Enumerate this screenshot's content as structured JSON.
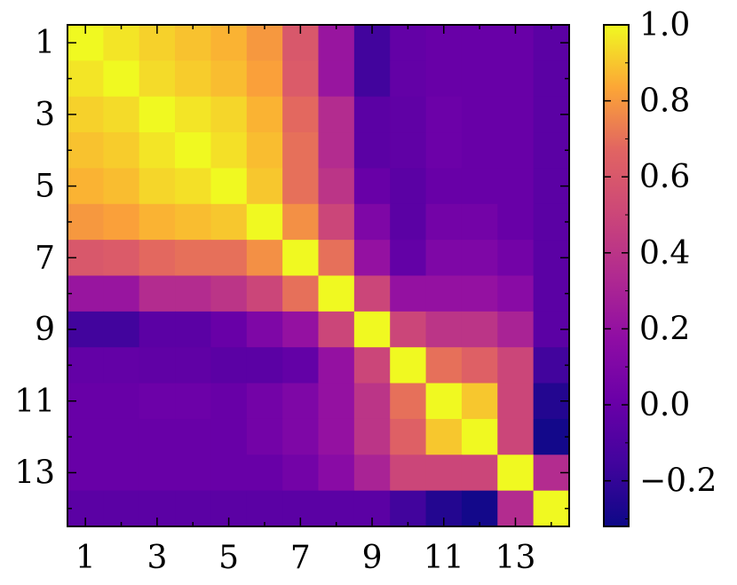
{
  "chart_data": {
    "type": "heatmap",
    "title": "",
    "xlabel": "",
    "ylabel": "",
    "x_tick_labels": [
      "1",
      "3",
      "5",
      "7",
      "9",
      "11",
      "13"
    ],
    "y_tick_labels": [
      "1",
      "3",
      "5",
      "7",
      "9",
      "11",
      "13"
    ],
    "colorbar": {
      "colormap": "plasma",
      "vmin": -0.32,
      "vmax": 1.0,
      "tick_labels": [
        "1.0",
        "0.8",
        "0.6",
        "0.4",
        "0.2",
        "0.0",
        "−0.2"
      ],
      "tick_values": [
        1.0,
        0.8,
        0.6,
        0.4,
        0.2,
        0.0,
        -0.2
      ]
    },
    "grid": false,
    "rows": 14,
    "cols": 14,
    "matrix": [
      [
        1.0,
        0.96,
        0.92,
        0.89,
        0.86,
        0.8,
        0.6,
        0.22,
        -0.15,
        -0.02,
        0.0,
        0.0,
        0.0,
        -0.05
      ],
      [
        0.96,
        1.0,
        0.94,
        0.91,
        0.88,
        0.82,
        0.62,
        0.22,
        -0.15,
        -0.02,
        0.0,
        0.0,
        0.0,
        -0.05
      ],
      [
        0.92,
        0.94,
        1.0,
        0.96,
        0.93,
        0.86,
        0.68,
        0.35,
        -0.05,
        -0.03,
        0.02,
        0.0,
        0.0,
        -0.05
      ],
      [
        0.89,
        0.91,
        0.96,
        1.0,
        0.95,
        0.88,
        0.7,
        0.35,
        -0.05,
        -0.03,
        0.02,
        0.0,
        0.0,
        -0.05
      ],
      [
        0.86,
        0.88,
        0.93,
        0.95,
        1.0,
        0.9,
        0.7,
        0.4,
        0.0,
        -0.05,
        0.0,
        0.0,
        0.0,
        -0.05
      ],
      [
        0.8,
        0.82,
        0.86,
        0.88,
        0.9,
        1.0,
        0.78,
        0.5,
        0.1,
        -0.05,
        0.05,
        0.05,
        0.0,
        -0.05
      ],
      [
        0.6,
        0.62,
        0.68,
        0.7,
        0.7,
        0.78,
        1.0,
        0.7,
        0.2,
        -0.02,
        0.1,
        0.1,
        0.05,
        -0.05
      ],
      [
        0.22,
        0.22,
        0.35,
        0.35,
        0.4,
        0.5,
        0.7,
        1.0,
        0.5,
        0.2,
        0.2,
        0.2,
        0.15,
        -0.05
      ],
      [
        -0.15,
        -0.15,
        -0.05,
        -0.05,
        0.0,
        0.1,
        0.2,
        0.5,
        1.0,
        0.5,
        0.4,
        0.4,
        0.3,
        -0.05
      ],
      [
        -0.02,
        -0.02,
        -0.03,
        -0.03,
        -0.05,
        -0.05,
        -0.02,
        0.2,
        0.5,
        1.0,
        0.7,
        0.65,
        0.5,
        -0.15
      ],
      [
        0.0,
        0.0,
        0.02,
        0.02,
        0.0,
        0.05,
        0.1,
        0.2,
        0.4,
        0.7,
        1.0,
        0.9,
        0.5,
        -0.25
      ],
      [
        0.0,
        0.0,
        0.0,
        0.0,
        0.0,
        0.05,
        0.1,
        0.2,
        0.4,
        0.65,
        0.9,
        1.0,
        0.5,
        -0.3
      ],
      [
        0.0,
        0.0,
        0.0,
        0.0,
        0.0,
        0.0,
        0.05,
        0.15,
        0.3,
        0.5,
        0.5,
        0.5,
        1.0,
        0.35
      ],
      [
        -0.05,
        -0.05,
        -0.05,
        -0.05,
        -0.05,
        -0.05,
        -0.05,
        -0.05,
        -0.05,
        -0.15,
        -0.25,
        -0.3,
        0.35,
        1.0
      ]
    ]
  }
}
